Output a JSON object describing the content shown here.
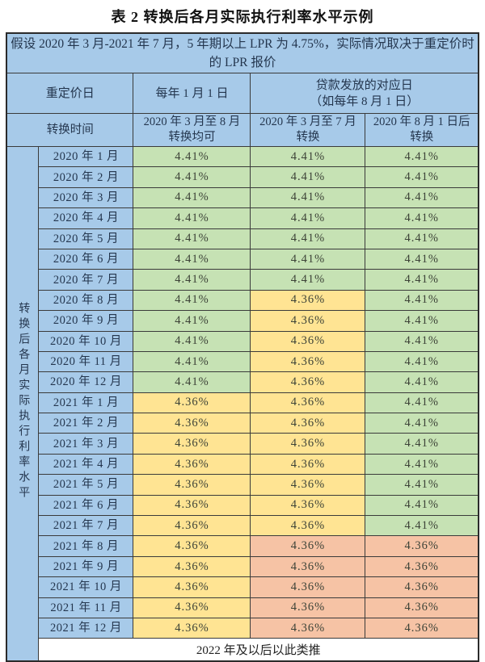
{
  "title": "表 2  转换后各月实际执行利率水平示例",
  "colors": {
    "header_blue": "#a7cae9",
    "rate_441_green": "#c6e2b4",
    "rate_436_yellow": "#ffe493",
    "rate_436_orange": "#f6c3a5",
    "border": "#3a3a3a"
  },
  "table": {
    "note": "假设 2020 年 3 月-2021 年 7 月，5 年期以上 LPR 为 4.75%，实际情况取决于重定价时的 LPR 报价",
    "header": {
      "repricing_label": "重定价日",
      "annual_date": "每年 1 月 1 日",
      "loan_date": "贷款发放的对应日\n（如每年 8 月 1 日）",
      "convert_label": "转换时间",
      "convert_window_1": "2020 年 3 月至 8 月\n转换均可",
      "convert_window_2": "2020 年 3 月至 7 月\n转换",
      "convert_window_3": "2020 年 8 月 1 日后\n转换"
    },
    "side_label": "转换后各月实际执行利率水平",
    "rows": [
      {
        "month": "2020 年 1 月",
        "values": [
          "4.41%",
          "4.41%",
          "4.41%"
        ],
        "colors": [
          "green",
          "green",
          "green"
        ]
      },
      {
        "month": "2020 年 2 月",
        "values": [
          "4.41%",
          "4.41%",
          "4.41%"
        ],
        "colors": [
          "green",
          "green",
          "green"
        ]
      },
      {
        "month": "2020 年 3 月",
        "values": [
          "4.41%",
          "4.41%",
          "4.41%"
        ],
        "colors": [
          "green",
          "green",
          "green"
        ]
      },
      {
        "month": "2020 年 4 月",
        "values": [
          "4.41%",
          "4.41%",
          "4.41%"
        ],
        "colors": [
          "green",
          "green",
          "green"
        ]
      },
      {
        "month": "2020 年 5 月",
        "values": [
          "4.41%",
          "4.41%",
          "4.41%"
        ],
        "colors": [
          "green",
          "green",
          "green"
        ]
      },
      {
        "month": "2020 年 6 月",
        "values": [
          "4.41%",
          "4.41%",
          "4.41%"
        ],
        "colors": [
          "green",
          "green",
          "green"
        ]
      },
      {
        "month": "2020 年 7 月",
        "values": [
          "4.41%",
          "4.41%",
          "4.41%"
        ],
        "colors": [
          "green",
          "green",
          "green"
        ]
      },
      {
        "month": "2020 年 8 月",
        "values": [
          "4.41%",
          "4.36%",
          "4.41%"
        ],
        "colors": [
          "green",
          "yellow",
          "green"
        ]
      },
      {
        "month": "2020 年 9 月",
        "values": [
          "4.41%",
          "4.36%",
          "4.41%"
        ],
        "colors": [
          "green",
          "yellow",
          "green"
        ]
      },
      {
        "month": "2020 年 10 月",
        "values": [
          "4.41%",
          "4.36%",
          "4.41%"
        ],
        "colors": [
          "green",
          "yellow",
          "green"
        ]
      },
      {
        "month": "2020 年 11 月",
        "values": [
          "4.41%",
          "4.36%",
          "4.41%"
        ],
        "colors": [
          "green",
          "yellow",
          "green"
        ]
      },
      {
        "month": "2020 年 12 月",
        "values": [
          "4.41%",
          "4.36%",
          "4.41%"
        ],
        "colors": [
          "green",
          "yellow",
          "green"
        ]
      },
      {
        "month": "2021 年 1 月",
        "values": [
          "4.36%",
          "4.36%",
          "4.41%"
        ],
        "colors": [
          "yellow",
          "yellow",
          "green"
        ]
      },
      {
        "month": "2021 年 2 月",
        "values": [
          "4.36%",
          "4.36%",
          "4.41%"
        ],
        "colors": [
          "yellow",
          "yellow",
          "green"
        ]
      },
      {
        "month": "2021 年 3 月",
        "values": [
          "4.36%",
          "4.36%",
          "4.41%"
        ],
        "colors": [
          "yellow",
          "yellow",
          "green"
        ]
      },
      {
        "month": "2021 年 4 月",
        "values": [
          "4.36%",
          "4.36%",
          "4.41%"
        ],
        "colors": [
          "yellow",
          "yellow",
          "green"
        ]
      },
      {
        "month": "2021 年 5 月",
        "values": [
          "4.36%",
          "4.36%",
          "4.41%"
        ],
        "colors": [
          "yellow",
          "yellow",
          "green"
        ]
      },
      {
        "month": "2021 年 6 月",
        "values": [
          "4.36%",
          "4.36%",
          "4.41%"
        ],
        "colors": [
          "yellow",
          "yellow",
          "green"
        ]
      },
      {
        "month": "2021 年 7 月",
        "values": [
          "4.36%",
          "4.36%",
          "4.41%"
        ],
        "colors": [
          "yellow",
          "yellow",
          "green"
        ]
      },
      {
        "month": "2021 年 8 月",
        "values": [
          "4.36%",
          "4.36%",
          "4.36%"
        ],
        "colors": [
          "yellow",
          "orange",
          "orange"
        ]
      },
      {
        "month": "2021 年 9 月",
        "values": [
          "4.36%",
          "4.36%",
          "4.36%"
        ],
        "colors": [
          "yellow",
          "orange",
          "orange"
        ]
      },
      {
        "month": "2021 年 10 月",
        "values": [
          "4.36%",
          "4.36%",
          "4.36%"
        ],
        "colors": [
          "yellow",
          "orange",
          "orange"
        ]
      },
      {
        "month": "2021 年 11 月",
        "values": [
          "4.36%",
          "4.36%",
          "4.36%"
        ],
        "colors": [
          "yellow",
          "orange",
          "orange"
        ]
      },
      {
        "month": "2021 年 12 月",
        "values": [
          "4.36%",
          "4.36%",
          "4.36%"
        ],
        "colors": [
          "yellow",
          "orange",
          "orange"
        ]
      }
    ],
    "footer": "2022 年及以后以此类推"
  }
}
